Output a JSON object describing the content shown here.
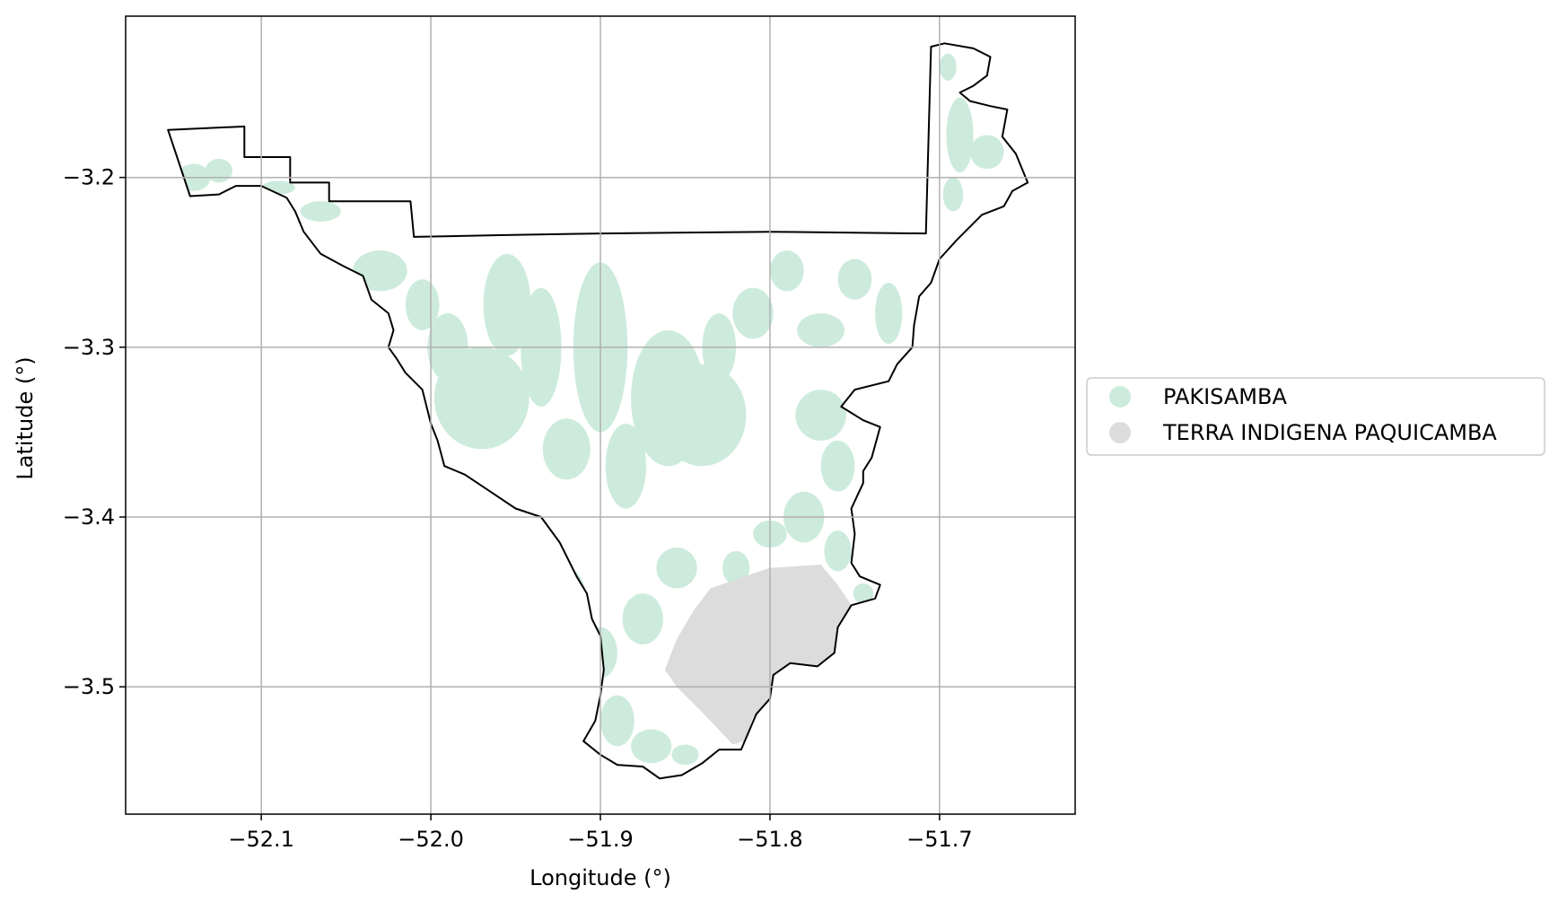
{
  "chart_data": {
    "type": "map",
    "xlabel": "Longitude (°)",
    "ylabel": "Latitude (°)",
    "xlim": [
      -52.18,
      -51.62
    ],
    "ylim": [
      -3.575,
      -3.105
    ],
    "x_ticks": [
      -52.1,
      -52.0,
      -51.9,
      -51.8,
      -51.7
    ],
    "x_tick_labels": [
      "−52.1",
      "−52.0",
      "−51.9",
      "−51.8",
      "−51.7"
    ],
    "y_ticks": [
      -3.2,
      -3.3,
      -3.4,
      -3.5
    ],
    "y_tick_labels": [
      "−3.2",
      "−3.3",
      "−3.4",
      "−3.5"
    ],
    "grid": true,
    "legend_position": "right",
    "colors": {
      "pakisamba": "#cdebdd",
      "terra_indigena": "#dcdcdc",
      "boundary": "#000000",
      "grid": "#b0b0b0"
    },
    "legend": [
      {
        "label": "PAKISAMBA",
        "color": "#cdebdd"
      },
      {
        "label": "TERRA INDIGENA PAQUICAMBA",
        "color": "#dcdcdc"
      }
    ],
    "boundary": [
      [
        -52.155,
        -3.172
      ],
      [
        -52.11,
        -3.17
      ],
      [
        -52.11,
        -3.188
      ],
      [
        -52.083,
        -3.188
      ],
      [
        -52.083,
        -3.203
      ],
      [
        -52.06,
        -3.203
      ],
      [
        -52.06,
        -3.214
      ],
      [
        -52.012,
        -3.214
      ],
      [
        -52.01,
        -3.235
      ],
      [
        -51.96,
        -3.234
      ],
      [
        -51.9,
        -3.233
      ],
      [
        -51.8,
        -3.232
      ],
      [
        -51.708,
        -3.233
      ],
      [
        -51.705,
        -3.123
      ],
      [
        -51.697,
        -3.121
      ],
      [
        -51.68,
        -3.124
      ],
      [
        -51.67,
        -3.129
      ],
      [
        -51.672,
        -3.14
      ],
      [
        -51.68,
        -3.146
      ],
      [
        -51.688,
        -3.15
      ],
      [
        -51.682,
        -3.155
      ],
      [
        -51.67,
        -3.158
      ],
      [
        -51.66,
        -3.16
      ],
      [
        -51.663,
        -3.176
      ],
      [
        -51.655,
        -3.186
      ],
      [
        -51.648,
        -3.203
      ],
      [
        -51.657,
        -3.208
      ],
      [
        -51.662,
        -3.217
      ],
      [
        -51.675,
        -3.222
      ],
      [
        -51.69,
        -3.237
      ],
      [
        -51.7,
        -3.248
      ],
      [
        -51.705,
        -3.262
      ],
      [
        -51.712,
        -3.27
      ],
      [
        -51.715,
        -3.287
      ],
      [
        -51.716,
        -3.3
      ],
      [
        -51.725,
        -3.31
      ],
      [
        -51.73,
        -3.32
      ],
      [
        -51.75,
        -3.325
      ],
      [
        -51.758,
        -3.335
      ],
      [
        -51.745,
        -3.343
      ],
      [
        -51.735,
        -3.347
      ],
      [
        -51.74,
        -3.365
      ],
      [
        -51.745,
        -3.373
      ],
      [
        -51.745,
        -3.38
      ],
      [
        -51.752,
        -3.395
      ],
      [
        -51.75,
        -3.41
      ],
      [
        -51.752,
        -3.427
      ],
      [
        -51.747,
        -3.435
      ],
      [
        -51.735,
        -3.44
      ],
      [
        -51.738,
        -3.448
      ],
      [
        -51.752,
        -3.452
      ],
      [
        -51.76,
        -3.465
      ],
      [
        -51.762,
        -3.48
      ],
      [
        -51.772,
        -3.488
      ],
      [
        -51.788,
        -3.486
      ],
      [
        -51.798,
        -3.493
      ],
      [
        -51.8,
        -3.507
      ],
      [
        -51.808,
        -3.516
      ],
      [
        -51.817,
        -3.537
      ],
      [
        -51.83,
        -3.537
      ],
      [
        -51.84,
        -3.545
      ],
      [
        -51.852,
        -3.552
      ],
      [
        -51.865,
        -3.554
      ],
      [
        -51.875,
        -3.547
      ],
      [
        -51.89,
        -3.546
      ],
      [
        -51.9,
        -3.54
      ],
      [
        -51.91,
        -3.532
      ],
      [
        -51.903,
        -3.52
      ],
      [
        -51.9,
        -3.505
      ],
      [
        -51.898,
        -3.49
      ],
      [
        -51.9,
        -3.47
      ],
      [
        -51.905,
        -3.46
      ],
      [
        -51.908,
        -3.445
      ],
      [
        -51.914,
        -3.435
      ],
      [
        -51.924,
        -3.415
      ],
      [
        -51.935,
        -3.4
      ],
      [
        -51.95,
        -3.395
      ],
      [
        -51.965,
        -3.385
      ],
      [
        -51.98,
        -3.375
      ],
      [
        -51.992,
        -3.37
      ],
      [
        -51.996,
        -3.355
      ],
      [
        -52.0,
        -3.345
      ],
      [
        -52.005,
        -3.325
      ],
      [
        -52.015,
        -3.315
      ],
      [
        -52.02,
        -3.307
      ],
      [
        -52.025,
        -3.3
      ],
      [
        -52.022,
        -3.29
      ],
      [
        -52.025,
        -3.28
      ],
      [
        -52.035,
        -3.272
      ],
      [
        -52.04,
        -3.258
      ],
      [
        -52.052,
        -3.252
      ],
      [
        -52.065,
        -3.245
      ],
      [
        -52.075,
        -3.232
      ],
      [
        -52.08,
        -3.22
      ],
      [
        -52.085,
        -3.212
      ],
      [
        -52.1,
        -3.205
      ],
      [
        -52.115,
        -3.205
      ],
      [
        -52.125,
        -3.21
      ],
      [
        -52.142,
        -3.211
      ],
      [
        -52.155,
        -3.172
      ]
    ],
    "pakisamba_patches": [
      {
        "lon": -52.14,
        "lat": -3.2,
        "rx": 0.01,
        "ry": 0.008
      },
      {
        "lon": -52.125,
        "lat": -3.196,
        "rx": 0.008,
        "ry": 0.007
      },
      {
        "lon": -52.09,
        "lat": -3.206,
        "rx": 0.01,
        "ry": 0.004
      },
      {
        "lon": -52.065,
        "lat": -3.22,
        "rx": 0.012,
        "ry": 0.006
      },
      {
        "lon": -52.03,
        "lat": -3.255,
        "rx": 0.016,
        "ry": 0.012
      },
      {
        "lon": -52.005,
        "lat": -3.275,
        "rx": 0.01,
        "ry": 0.015
      },
      {
        "lon": -51.99,
        "lat": -3.3,
        "rx": 0.012,
        "ry": 0.02
      },
      {
        "lon": -51.97,
        "lat": -3.33,
        "rx": 0.028,
        "ry": 0.03
      },
      {
        "lon": -51.955,
        "lat": -3.275,
        "rx": 0.014,
        "ry": 0.03
      },
      {
        "lon": -51.935,
        "lat": -3.3,
        "rx": 0.012,
        "ry": 0.035
      },
      {
        "lon": -51.92,
        "lat": -3.36,
        "rx": 0.014,
        "ry": 0.018
      },
      {
        "lon": -51.9,
        "lat": -3.3,
        "rx": 0.016,
        "ry": 0.05
      },
      {
        "lon": -51.885,
        "lat": -3.37,
        "rx": 0.012,
        "ry": 0.025
      },
      {
        "lon": -51.86,
        "lat": -3.33,
        "rx": 0.022,
        "ry": 0.04
      },
      {
        "lon": -51.84,
        "lat": -3.34,
        "rx": 0.026,
        "ry": 0.03
      },
      {
        "lon": -51.83,
        "lat": -3.3,
        "rx": 0.01,
        "ry": 0.02
      },
      {
        "lon": -51.81,
        "lat": -3.28,
        "rx": 0.012,
        "ry": 0.015
      },
      {
        "lon": -51.79,
        "lat": -3.255,
        "rx": 0.01,
        "ry": 0.012
      },
      {
        "lon": -51.77,
        "lat": -3.29,
        "rx": 0.014,
        "ry": 0.01
      },
      {
        "lon": -51.75,
        "lat": -3.26,
        "rx": 0.01,
        "ry": 0.012
      },
      {
        "lon": -51.73,
        "lat": -3.28,
        "rx": 0.008,
        "ry": 0.018
      },
      {
        "lon": -51.77,
        "lat": -3.34,
        "rx": 0.015,
        "ry": 0.015
      },
      {
        "lon": -51.76,
        "lat": -3.37,
        "rx": 0.01,
        "ry": 0.015
      },
      {
        "lon": -51.78,
        "lat": -3.4,
        "rx": 0.012,
        "ry": 0.015
      },
      {
        "lon": -51.76,
        "lat": -3.42,
        "rx": 0.008,
        "ry": 0.012
      },
      {
        "lon": -51.745,
        "lat": -3.445,
        "rx": 0.006,
        "ry": 0.006
      },
      {
        "lon": -51.94,
        "lat": -3.42,
        "rx": 0.014,
        "ry": 0.02
      },
      {
        "lon": -51.92,
        "lat": -3.45,
        "rx": 0.012,
        "ry": 0.02
      },
      {
        "lon": -51.9,
        "lat": -3.48,
        "rx": 0.01,
        "ry": 0.015
      },
      {
        "lon": -51.875,
        "lat": -3.46,
        "rx": 0.012,
        "ry": 0.015
      },
      {
        "lon": -51.855,
        "lat": -3.43,
        "rx": 0.012,
        "ry": 0.012
      },
      {
        "lon": -51.89,
        "lat": -3.52,
        "rx": 0.01,
        "ry": 0.015
      },
      {
        "lon": -51.87,
        "lat": -3.535,
        "rx": 0.012,
        "ry": 0.01
      },
      {
        "lon": -51.85,
        "lat": -3.54,
        "rx": 0.008,
        "ry": 0.006
      },
      {
        "lon": -51.82,
        "lat": -3.43,
        "rx": 0.008,
        "ry": 0.01
      },
      {
        "lon": -51.8,
        "lat": -3.41,
        "rx": 0.01,
        "ry": 0.008
      },
      {
        "lon": -51.688,
        "lat": -3.175,
        "rx": 0.008,
        "ry": 0.022
      },
      {
        "lon": -51.672,
        "lat": -3.185,
        "rx": 0.01,
        "ry": 0.01
      },
      {
        "lon": -51.695,
        "lat": -3.135,
        "rx": 0.005,
        "ry": 0.008
      },
      {
        "lon": -51.692,
        "lat": -3.21,
        "rx": 0.006,
        "ry": 0.01
      }
    ],
    "terra_indigena": [
      [
        -51.855,
        -3.472
      ],
      [
        -51.845,
        -3.455
      ],
      [
        -51.835,
        -3.442
      ],
      [
        -51.815,
        -3.435
      ],
      [
        -51.8,
        -3.43
      ],
      [
        -51.77,
        -3.428
      ],
      [
        -51.76,
        -3.44
      ],
      [
        -51.752,
        -3.452
      ],
      [
        -51.76,
        -3.465
      ],
      [
        -51.762,
        -3.48
      ],
      [
        -51.772,
        -3.488
      ],
      [
        -51.788,
        -3.486
      ],
      [
        -51.798,
        -3.493
      ],
      [
        -51.8,
        -3.507
      ],
      [
        -51.81,
        -3.518
      ],
      [
        -51.815,
        -3.532
      ],
      [
        -51.822,
        -3.534
      ],
      [
        -51.84,
        -3.515
      ],
      [
        -51.855,
        -3.5
      ],
      [
        -51.862,
        -3.49
      ],
      [
        -51.855,
        -3.472
      ]
    ]
  }
}
